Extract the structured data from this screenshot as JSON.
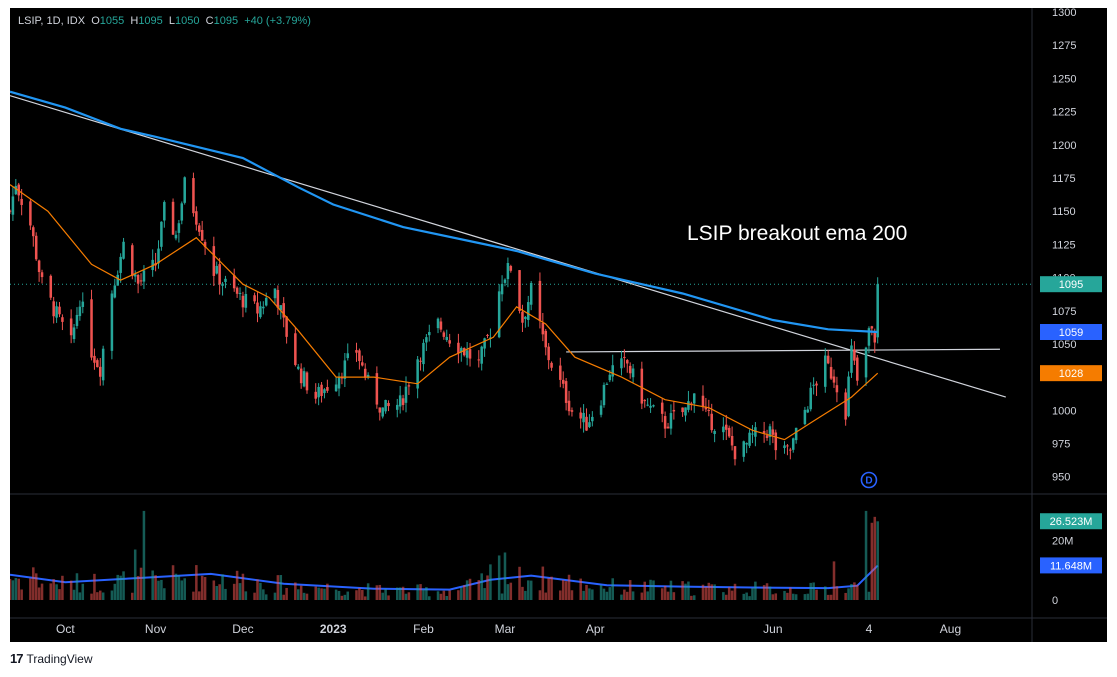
{
  "header": {
    "symbol": "LSIP, 1D, IDX",
    "o_label": "O",
    "o_value": "1055",
    "h_label": "H",
    "h_value": "1095",
    "l_label": "L",
    "l_value": "1050",
    "c_label": "C",
    "c_value": "1095",
    "change": "+40 (+3.79%)"
  },
  "annotation": "LSIP breakout ema 200",
  "event_marker": "D",
  "watermark": "TradingView",
  "price_badges": {
    "last": {
      "text": "1095",
      "value": 1095,
      "color": "#26a69a"
    },
    "ema200": {
      "text": "1059",
      "value": 1059,
      "color": "#2962ff"
    },
    "ema20": {
      "text": "1028",
      "value": 1028,
      "color": "#f57c00"
    }
  },
  "volume_badges": {
    "last": {
      "text": "26.523M",
      "value": 26.523,
      "color": "#26a69a"
    },
    "ma": {
      "text": "11.648M",
      "value": 11.648,
      "color": "#2962ff"
    }
  },
  "chart_data": {
    "type": "candlestick",
    "price_axis": {
      "ticks": [
        950,
        975,
        1000,
        1025,
        1050,
        1075,
        1100,
        1125,
        1150,
        1175,
        1200,
        1225,
        1250,
        1275,
        1300
      ],
      "range": [
        937,
        1303
      ]
    },
    "volume_axis": {
      "ticks": [
        {
          "label": "20M",
          "value": 20
        },
        {
          "label": "0",
          "value": 0
        }
      ],
      "range": [
        0,
        33
      ]
    },
    "x_axis": {
      "labels": [
        {
          "label": "Oct",
          "t": "2022-10-01"
        },
        {
          "label": "Nov",
          "t": "2022-11-01"
        },
        {
          "label": "Dec",
          "t": "2022-12-01"
        },
        {
          "label": "2023",
          "t": "2023-01-01",
          "bold": true
        },
        {
          "label": "Feb",
          "t": "2023-02-01"
        },
        {
          "label": "Mar",
          "t": "2023-03-01"
        },
        {
          "label": "Apr",
          "t": "2023-04-01"
        },
        {
          "label": "Jun",
          "t": "2023-06-01"
        },
        {
          "label": "4",
          "t": "2023-07-04"
        },
        {
          "label": "Aug",
          "t": "2023-08-01"
        }
      ],
      "range": [
        "2022-09-12",
        "2023-08-29"
      ]
    },
    "keypoints": [
      {
        "t": "2022-09-12",
        "p": 1150
      },
      {
        "t": "2022-09-14",
        "p": 1172
      },
      {
        "t": "2022-09-19",
        "p": 1140
      },
      {
        "t": "2022-09-23",
        "p": 1095
      },
      {
        "t": "2022-09-28",
        "p": 1072
      },
      {
        "t": "2022-10-03",
        "p": 1050
      },
      {
        "t": "2022-10-06",
        "p": 1085
      },
      {
        "t": "2022-10-10",
        "p": 1045
      },
      {
        "t": "2022-10-13",
        "p": 1032
      },
      {
        "t": "2022-10-17",
        "p": 1090
      },
      {
        "t": "2022-10-21",
        "p": 1125
      },
      {
        "t": "2022-10-26",
        "p": 1095
      },
      {
        "t": "2022-11-01",
        "p": 1110
      },
      {
        "t": "2022-11-04",
        "p": 1150
      },
      {
        "t": "2022-11-08",
        "p": 1132
      },
      {
        "t": "2022-11-11",
        "p": 1170
      },
      {
        "t": "2022-11-16",
        "p": 1140
      },
      {
        "t": "2022-11-21",
        "p": 1105
      },
      {
        "t": "2022-11-25",
        "p": 1095
      },
      {
        "t": "2022-11-30",
        "p": 1085
      },
      {
        "t": "2022-12-06",
        "p": 1075
      },
      {
        "t": "2022-12-12",
        "p": 1092
      },
      {
        "t": "2022-12-15",
        "p": 1065
      },
      {
        "t": "2022-12-20",
        "p": 1030
      },
      {
        "t": "2022-12-26",
        "p": 1010
      },
      {
        "t": "2023-01-02",
        "p": 1025
      },
      {
        "t": "2023-01-09",
        "p": 1045
      },
      {
        "t": "2023-01-13",
        "p": 1020
      },
      {
        "t": "2023-01-18",
        "p": 1000
      },
      {
        "t": "2023-01-24",
        "p": 1005
      },
      {
        "t": "2023-01-30",
        "p": 1040
      },
      {
        "t": "2023-02-06",
        "p": 1065
      },
      {
        "t": "2023-02-10",
        "p": 1055
      },
      {
        "t": "2023-02-15",
        "p": 1045
      },
      {
        "t": "2023-02-20",
        "p": 1035
      },
      {
        "t": "2023-02-24",
        "p": 1060
      },
      {
        "t": "2023-02-28",
        "p": 1100
      },
      {
        "t": "2023-03-03",
        "p": 1108
      },
      {
        "t": "2023-03-07",
        "p": 1068
      },
      {
        "t": "2023-03-10",
        "p": 1090
      },
      {
        "t": "2023-03-15",
        "p": 1045
      },
      {
        "t": "2023-03-20",
        "p": 1020
      },
      {
        "t": "2023-03-24",
        "p": 1000
      },
      {
        "t": "2023-03-29",
        "p": 990
      },
      {
        "t": "2023-04-03",
        "p": 1010
      },
      {
        "t": "2023-04-06",
        "p": 1030
      },
      {
        "t": "2023-04-12",
        "p": 1035
      },
      {
        "t": "2023-04-18",
        "p": 1005
      },
      {
        "t": "2023-04-25",
        "p": 990
      },
      {
        "t": "2023-05-02",
        "p": 1000
      },
      {
        "t": "2023-05-05",
        "p": 1015
      },
      {
        "t": "2023-05-09",
        "p": 995
      },
      {
        "t": "2023-05-15",
        "p": 985
      },
      {
        "t": "2023-05-20",
        "p": 965
      },
      {
        "t": "2023-05-25",
        "p": 980
      },
      {
        "t": "2023-05-31",
        "p": 985
      },
      {
        "t": "2023-06-03",
        "p": 965
      },
      {
        "t": "2023-06-07",
        "p": 970
      },
      {
        "t": "2023-06-12",
        "p": 1000
      },
      {
        "t": "2023-06-15",
        "p": 1018
      },
      {
        "t": "2023-06-19",
        "p": 1035
      },
      {
        "t": "2023-06-22",
        "p": 1025
      },
      {
        "t": "2023-06-26",
        "p": 1000
      },
      {
        "t": "2023-06-28",
        "p": 1045
      },
      {
        "t": "2023-07-01",
        "p": 1010
      },
      {
        "t": "2023-07-04",
        "p": 1060
      },
      {
        "t": "2023-07-06",
        "p": 1055
      },
      {
        "t": "2023-07-07",
        "p": 1095
      }
    ],
    "ema200": [
      {
        "t": "2022-09-12",
        "p": 1240
      },
      {
        "t": "2022-10-01",
        "p": 1228
      },
      {
        "t": "2022-10-20",
        "p": 1212
      },
      {
        "t": "2022-11-01",
        "p": 1206
      },
      {
        "t": "2022-12-01",
        "p": 1190
      },
      {
        "t": "2022-12-20",
        "p": 1168
      },
      {
        "t": "2023-01-01",
        "p": 1155
      },
      {
        "t": "2023-01-25",
        "p": 1138
      },
      {
        "t": "2023-02-20",
        "p": 1126
      },
      {
        "t": "2023-03-05",
        "p": 1120
      },
      {
        "t": "2023-04-01",
        "p": 1103
      },
      {
        "t": "2023-05-01",
        "p": 1088
      },
      {
        "t": "2023-06-01",
        "p": 1068
      },
      {
        "t": "2023-06-20",
        "p": 1061
      },
      {
        "t": "2023-07-07",
        "p": 1059
      }
    ],
    "ema20": [
      {
        "t": "2022-09-12",
        "p": 1170
      },
      {
        "t": "2022-09-25",
        "p": 1150
      },
      {
        "t": "2022-10-10",
        "p": 1110
      },
      {
        "t": "2022-10-20",
        "p": 1098
      },
      {
        "t": "2022-11-01",
        "p": 1110
      },
      {
        "t": "2022-11-15",
        "p": 1130
      },
      {
        "t": "2022-12-01",
        "p": 1095
      },
      {
        "t": "2022-12-10",
        "p": 1085
      },
      {
        "t": "2022-12-20",
        "p": 1060
      },
      {
        "t": "2023-01-02",
        "p": 1025
      },
      {
        "t": "2023-01-15",
        "p": 1025
      },
      {
        "t": "2023-01-30",
        "p": 1020
      },
      {
        "t": "2023-02-10",
        "p": 1040
      },
      {
        "t": "2023-02-25",
        "p": 1055
      },
      {
        "t": "2023-03-05",
        "p": 1078
      },
      {
        "t": "2023-03-15",
        "p": 1065
      },
      {
        "t": "2023-03-25",
        "p": 1040
      },
      {
        "t": "2023-04-10",
        "p": 1025
      },
      {
        "t": "2023-04-25",
        "p": 1008
      },
      {
        "t": "2023-05-10",
        "p": 1002
      },
      {
        "t": "2023-05-25",
        "p": 985
      },
      {
        "t": "2023-06-05",
        "p": 978
      },
      {
        "t": "2023-06-15",
        "p": 992
      },
      {
        "t": "2023-06-28",
        "p": 1010
      },
      {
        "t": "2023-07-07",
        "p": 1028
      }
    ],
    "lines": [
      {
        "name": "descending-trendline",
        "from": {
          "t": "2022-09-12",
          "p": 1237
        },
        "to": {
          "t": "2023-08-20",
          "p": 1010
        },
        "color": "#d1d4dc"
      },
      {
        "name": "horizontal-resistance",
        "from": {
          "t": "2023-03-22",
          "p": 1044
        },
        "to": {
          "t": "2023-08-18",
          "p": 1046
        },
        "color": "#d1d4dc"
      }
    ],
    "event_marker_t": "2023-07-04",
    "volume": {
      "up_color": "#26a69a",
      "down_color": "#ef5350",
      "spikes": [
        {
          "t": "2022-10-28",
          "v": 30
        },
        {
          "t": "2022-10-25",
          "v": 17
        },
        {
          "t": "2022-09-20",
          "v": 11
        },
        {
          "t": "2022-11-20",
          "v": 13
        },
        {
          "t": "2023-02-24",
          "v": 12
        },
        {
          "t": "2023-03-01",
          "v": 16
        },
        {
          "t": "2023-02-27",
          "v": 15
        },
        {
          "t": "2023-06-22",
          "v": 13
        },
        {
          "t": "2023-07-03",
          "v": 30
        },
        {
          "t": "2023-07-05",
          "v": 26
        },
        {
          "t": "2023-07-06",
          "v": 28
        },
        {
          "t": "2023-07-07",
          "v": 26.5
        }
      ],
      "ma": [
        {
          "t": "2022-09-12",
          "v": 8.5
        },
        {
          "t": "2022-10-01",
          "v": 6
        },
        {
          "t": "2022-10-28",
          "v": 7.5
        },
        {
          "t": "2022-11-20",
          "v": 8.8
        },
        {
          "t": "2022-12-15",
          "v": 5.5
        },
        {
          "t": "2023-01-15",
          "v": 3.8
        },
        {
          "t": "2023-02-10",
          "v": 3.5
        },
        {
          "t": "2023-02-24",
          "v": 6.8
        },
        {
          "t": "2023-03-10",
          "v": 8.2
        },
        {
          "t": "2023-04-05",
          "v": 5
        },
        {
          "t": "2023-05-01",
          "v": 4.5
        },
        {
          "t": "2023-05-25",
          "v": 4.2
        },
        {
          "t": "2023-06-20",
          "v": 4
        },
        {
          "t": "2023-06-30",
          "v": 4.8
        },
        {
          "t": "2023-07-07",
          "v": 11.6
        }
      ]
    }
  }
}
